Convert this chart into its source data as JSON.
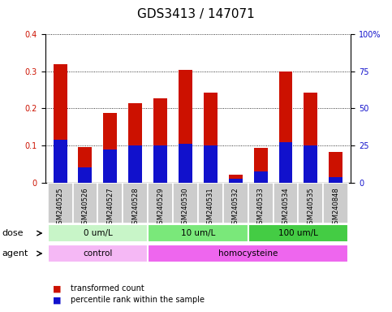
{
  "title": "GDS3413 / 147071",
  "samples": [
    "GSM240525",
    "GSM240526",
    "GSM240527",
    "GSM240528",
    "GSM240529",
    "GSM240530",
    "GSM240531",
    "GSM240532",
    "GSM240533",
    "GSM240534",
    "GSM240535",
    "GSM240848"
  ],
  "red_values": [
    0.32,
    0.095,
    0.188,
    0.215,
    0.228,
    0.305,
    0.242,
    0.022,
    0.093,
    0.3,
    0.242,
    0.082
  ],
  "blue_values": [
    0.115,
    0.04,
    0.09,
    0.1,
    0.1,
    0.105,
    0.1,
    0.01,
    0.03,
    0.108,
    0.1,
    0.015
  ],
  "ylim_left": [
    0,
    0.4
  ],
  "ylim_right": [
    0,
    100
  ],
  "yticks_left": [
    0,
    0.1,
    0.2,
    0.3,
    0.4
  ],
  "ytick_labels_left": [
    "0",
    "0.1",
    "0.2",
    "0.3",
    "0.4"
  ],
  "yticks_right": [
    0,
    25,
    50,
    75,
    100
  ],
  "ytick_labels_right": [
    "0",
    "25",
    "50",
    "75",
    "100%"
  ],
  "dose_groups": [
    {
      "label": "0 um/L",
      "start": 0,
      "end": 4,
      "color": "#c8f5c8"
    },
    {
      "label": "10 um/L",
      "start": 4,
      "end": 8,
      "color": "#7ae87a"
    },
    {
      "label": "100 um/L",
      "start": 8,
      "end": 12,
      "color": "#44cc44"
    }
  ],
  "agent_groups": [
    {
      "label": "control",
      "start": 0,
      "end": 4,
      "color": "#f5b8f5"
    },
    {
      "label": "homocysteine",
      "start": 4,
      "end": 12,
      "color": "#ee66ee"
    }
  ],
  "bar_color_red": "#cc1100",
  "bar_color_blue": "#1111cc",
  "bar_width": 0.55,
  "blue_bar_width": 0.55,
  "plot_bg_color": "#ffffff",
  "label_box_color": "#cccccc",
  "legend_items": [
    {
      "color": "#cc1100",
      "label": "transformed count"
    },
    {
      "color": "#1111cc",
      "label": "percentile rank within the sample"
    }
  ],
  "dose_label": "dose",
  "agent_label": "agent",
  "title_fontsize": 11,
  "tick_fontsize": 7,
  "label_fontsize": 8
}
